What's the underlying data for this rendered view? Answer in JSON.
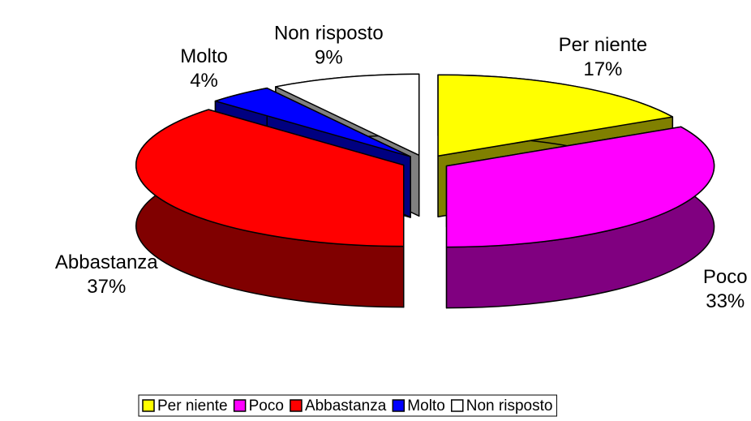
{
  "chart_data": {
    "type": "pie3d",
    "categories": [
      "Per niente",
      "Poco",
      "Abbastanza",
      "Molto",
      "Non risposto"
    ],
    "values": [
      17,
      33,
      37,
      4,
      9
    ],
    "value_labels": [
      "17%",
      "33%",
      "37%",
      "4%",
      "9%"
    ],
    "colors": [
      "#ffff00",
      "#ff00ff",
      "#ff0000",
      "#0000ff",
      "#ffffff"
    ],
    "side_colors": [
      "#808000",
      "#800080",
      "#800000",
      "#000080",
      "#808080"
    ],
    "legend": "bottom"
  }
}
